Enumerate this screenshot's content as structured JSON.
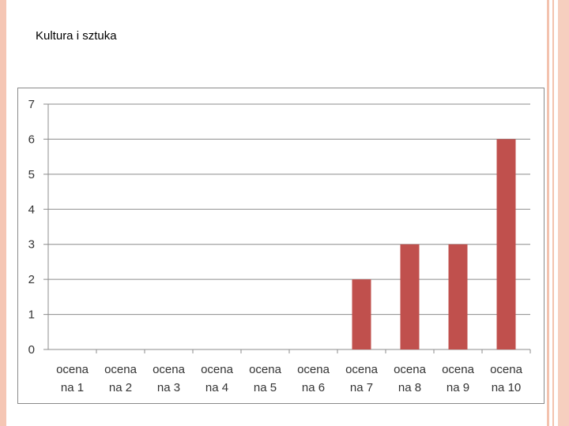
{
  "slide": {
    "title": "Kultura i sztuka"
  },
  "chart_data": {
    "type": "bar",
    "categories": [
      [
        "ocena",
        "na 1"
      ],
      [
        "ocena",
        "na 2"
      ],
      [
        "ocena",
        "na 3"
      ],
      [
        "ocena",
        "na 4"
      ],
      [
        "ocena",
        "na 5"
      ],
      [
        "ocena",
        "na 6"
      ],
      [
        "ocena",
        "na 7"
      ],
      [
        "ocena",
        "na 8"
      ],
      [
        "ocena",
        "na 9"
      ],
      [
        "ocena",
        "na 10"
      ]
    ],
    "values": [
      0,
      0,
      0,
      0,
      0,
      0,
      2,
      3,
      3,
      6
    ],
    "ylim": [
      0,
      7
    ],
    "yticks": [
      0,
      1,
      2,
      3,
      4,
      5,
      6,
      7
    ],
    "grid": true,
    "legend": "none",
    "bar_color": "#c0504d"
  },
  "colors": {
    "accent": "#f5c6b4"
  }
}
